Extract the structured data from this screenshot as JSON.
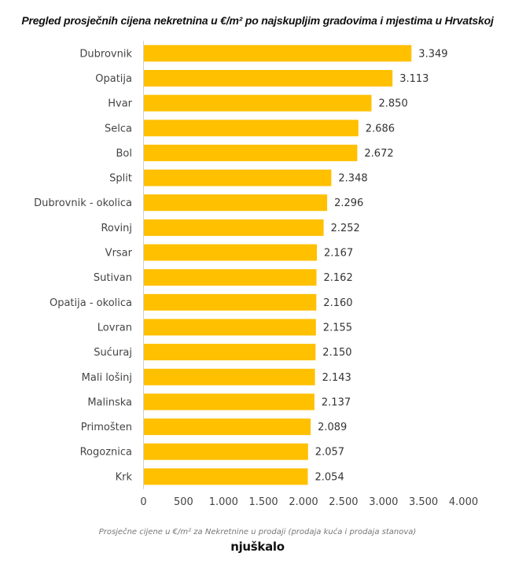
{
  "chart_data": {
    "type": "bar",
    "orientation": "horizontal",
    "title": "Pregled prosječnih cijena nekretnina u €/m² po najskupljim gradovima i mjestima u Hrvatskoj",
    "xlabel": "",
    "ylabel": "",
    "categories": [
      "Dubrovnik",
      "Opatija",
      "Hvar",
      "Selca",
      "Bol",
      "Split",
      "Dubrovnik - okolica",
      "Rovinj",
      "Vrsar",
      "Sutivan",
      "Opatija - okolica",
      "Lovran",
      "Sućuraj",
      "Mali lošinj",
      "Malinska",
      "Primošten",
      "Rogoznica",
      "Krk"
    ],
    "values": [
      3349,
      3113,
      2850,
      2686,
      2672,
      2348,
      2296,
      2252,
      2167,
      2162,
      2160,
      2155,
      2150,
      2143,
      2137,
      2089,
      2057,
      2054
    ],
    "value_labels": [
      "3.349",
      "3.113",
      "2.850",
      "2.686",
      "2.672",
      "2.348",
      "2.296",
      "2.252",
      "2.167",
      "2.162",
      "2.160",
      "2.155",
      "2.150",
      "2.143",
      "2.137",
      "2.089",
      "2.057",
      "2.054"
    ],
    "xlim": [
      0,
      4000
    ],
    "xticks": [
      0,
      500,
      1000,
      1500,
      2000,
      2500,
      3000,
      3500,
      4000
    ],
    "xtick_labels": [
      "0",
      "500",
      "1.000",
      "1.500",
      "2.000",
      "2.500",
      "3.000",
      "3.500",
      "4.000"
    ],
    "grid": false,
    "legend": "none",
    "bar_color": "#FFC000"
  },
  "footer": {
    "source": "Prosječne cijene u €/m² za Nekretnine u prodaji (prodaja kuća i prodaja stanova)",
    "logo_text": "njuškalo"
  }
}
